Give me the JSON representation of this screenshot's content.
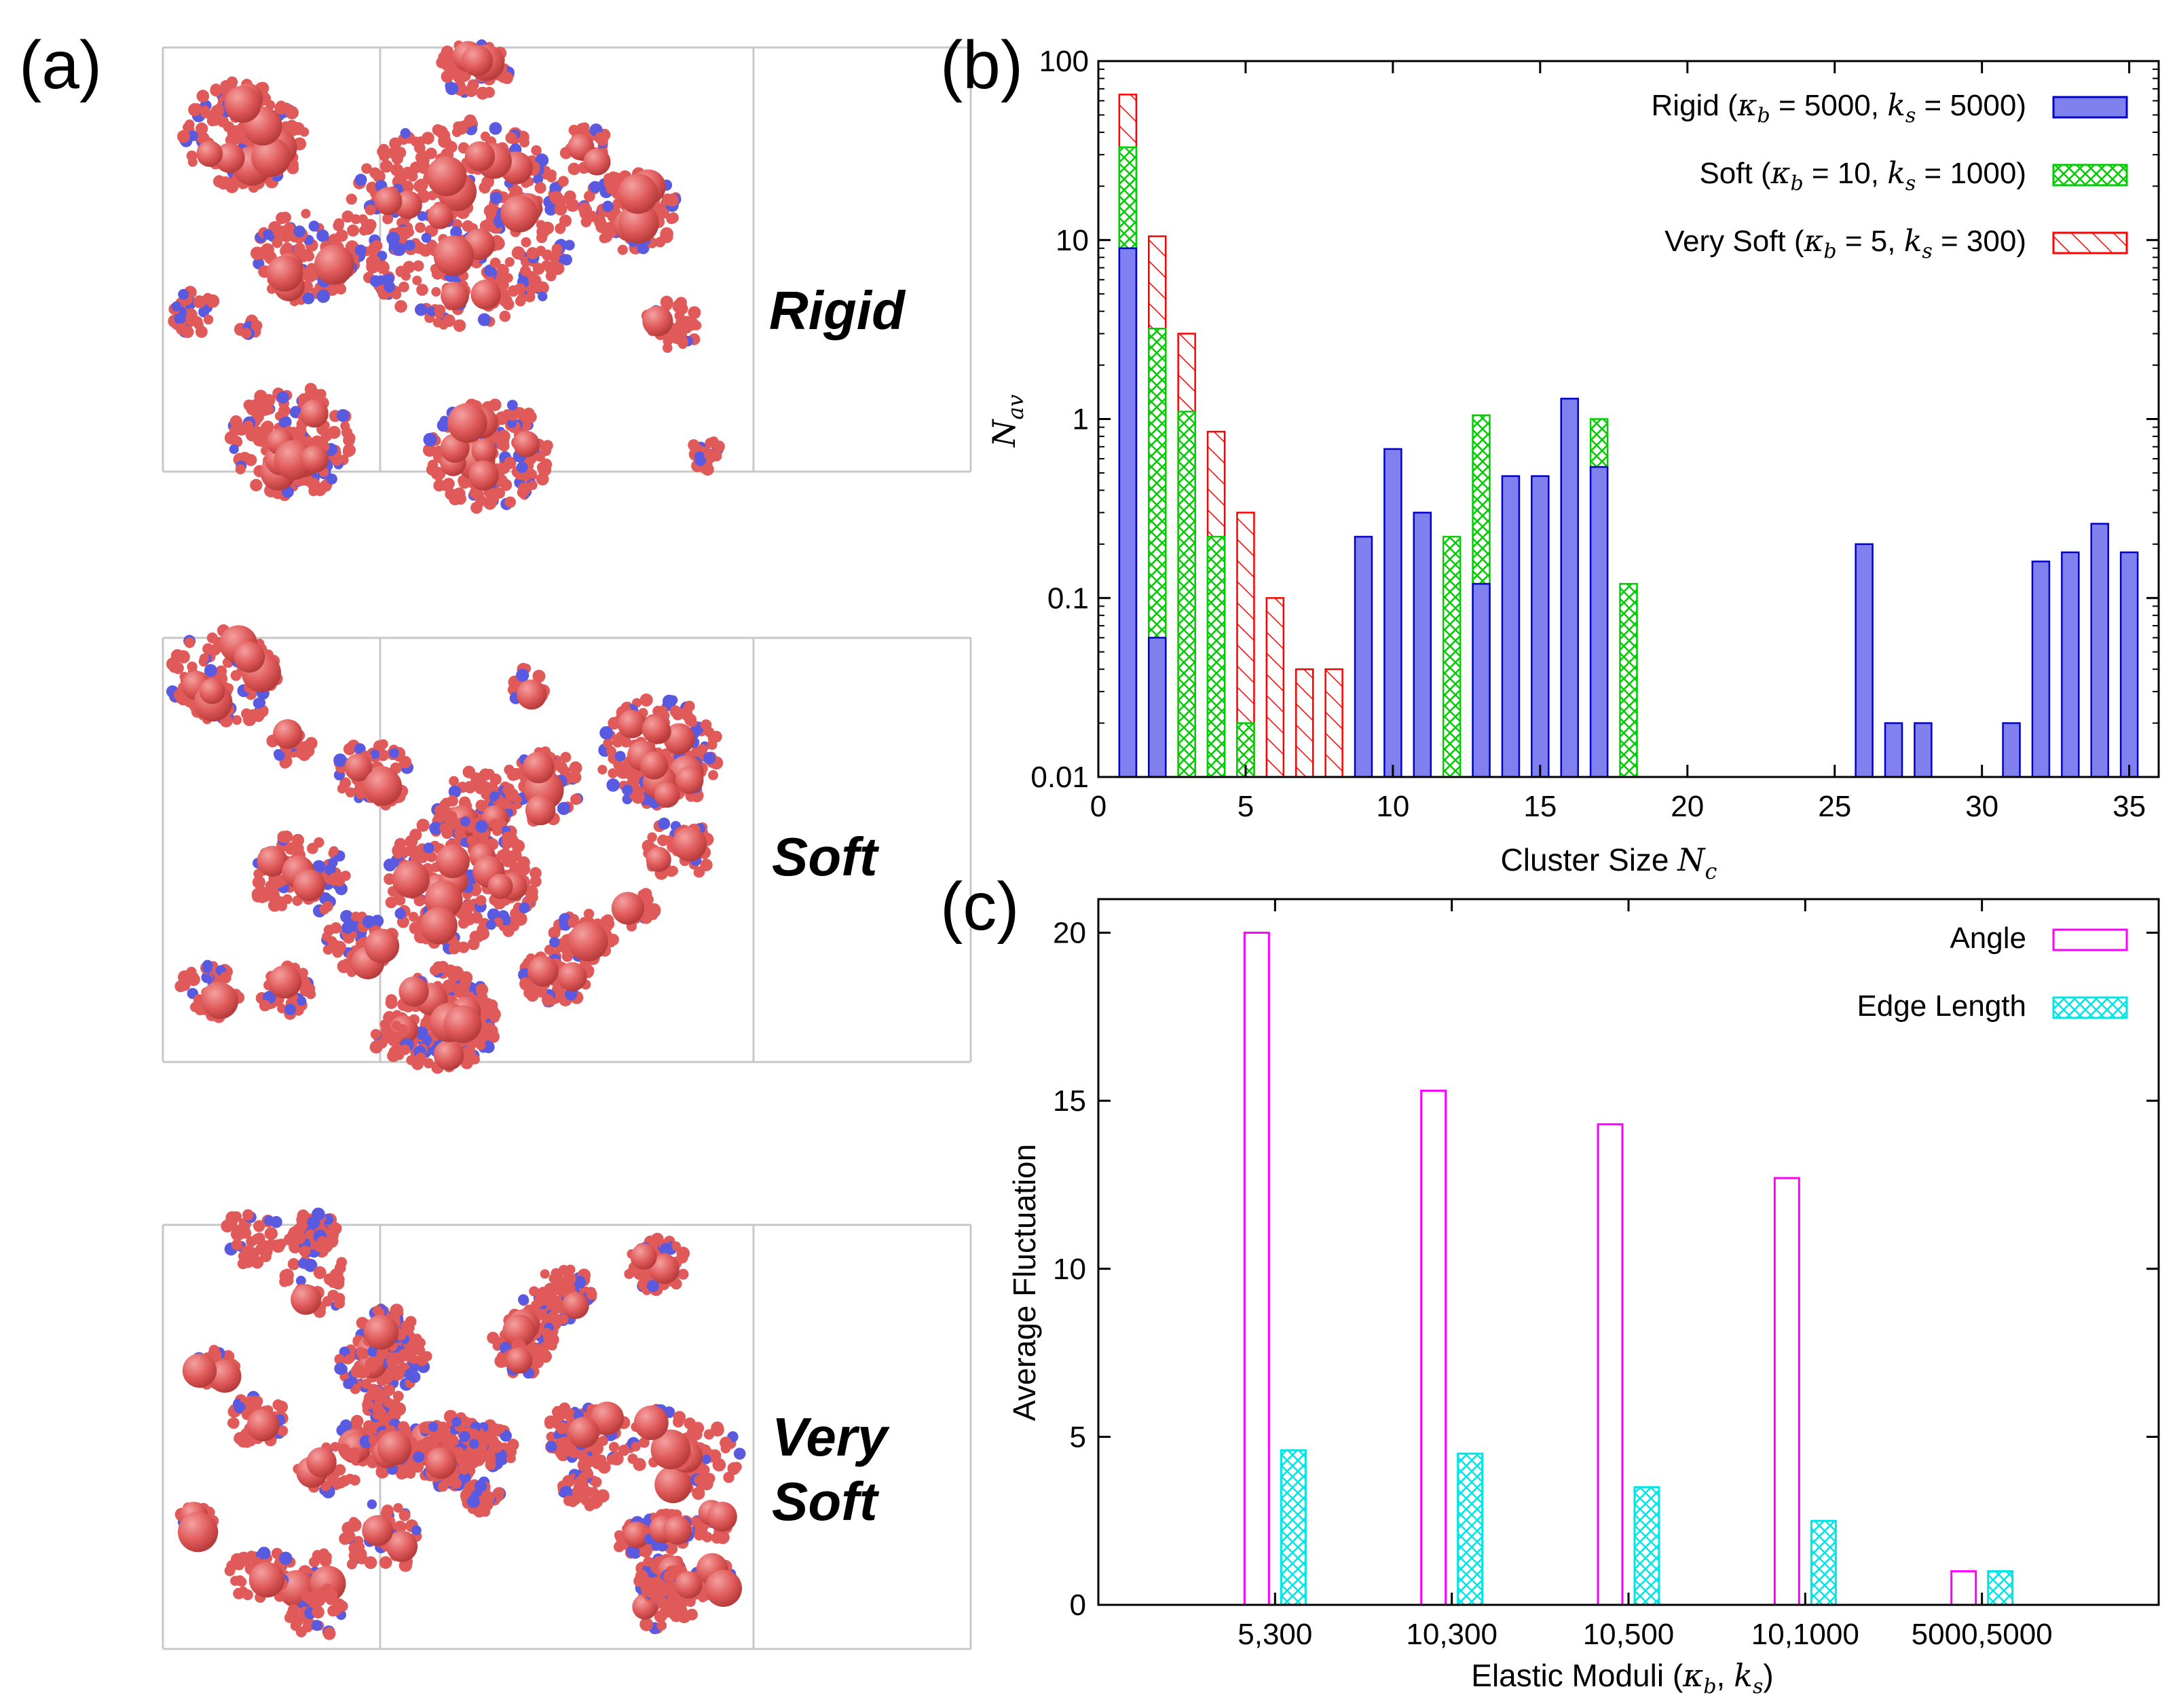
{
  "panels": {
    "a": {
      "label": "(a)",
      "states": [
        {
          "label": "Rigid"
        },
        {
          "label": "Soft"
        },
        {
          "label_line1": "Very",
          "label_line2": "Soft"
        }
      ]
    },
    "b": {
      "label": "(b)"
    },
    "c": {
      "label": "(c)"
    }
  },
  "colors": {
    "rigid": "#0000cc",
    "rigid_fill": "#8080ee",
    "soft": "#00cc00",
    "very_soft": "#ff0000",
    "angle": "#ff00ff",
    "edge": "#00e5e5",
    "particle": "#e05a5a",
    "particle_alt": "#5a5ae0",
    "box": "#c8c8c8"
  },
  "chart_data": [
    {
      "id": "b",
      "type": "bar",
      "scale": "log",
      "xlabel_prefix": "Cluster Size ",
      "xlabel_var": "N",
      "xlabel_sub": "c",
      "ylabel_var": "N",
      "ylabel_sub": "av",
      "xlim": [
        0,
        36
      ],
      "ylim": [
        0.01,
        100
      ],
      "xticks": [
        0,
        5,
        10,
        15,
        20,
        25,
        30,
        35
      ],
      "yticks": [
        0.01,
        0.1,
        1,
        10,
        100
      ],
      "ytick_labels": [
        "0.01",
        "0.1",
        "1",
        "10",
        "100"
      ],
      "stacking": "cumulative (Rigid drawn on top of Soft on top of Very Soft)",
      "series": [
        {
          "name": "Rigid",
          "legend_prefix": "Rigid (",
          "legend_k1": "κ",
          "legend_k1_sub": "b",
          "legend_k1_val": " = 5000, ",
          "legend_k2": "k",
          "legend_k2_sub": "s",
          "legend_k2_val": " = 5000)",
          "x": [
            1,
            2,
            9,
            10,
            11,
            13,
            14,
            15,
            16,
            17,
            26,
            27,
            28,
            31,
            32,
            33,
            34,
            35
          ],
          "values": [
            9,
            0.06,
            0.22,
            0.68,
            0.3,
            0.12,
            0.48,
            0.48,
            1.3,
            0.54,
            0.2,
            0.02,
            0.02,
            0.02,
            0.16,
            0.18,
            0.26,
            0.18
          ]
        },
        {
          "name": "Soft",
          "legend_prefix": "Soft (",
          "legend_k1": "κ",
          "legend_k1_sub": "b",
          "legend_k1_val": " = 10, ",
          "legend_k2": "k",
          "legend_k2_sub": "s",
          "legend_k2_val": " = 1000)",
          "x": [
            1,
            2,
            3,
            4,
            5,
            12,
            13,
            17,
            18
          ],
          "values": [
            33,
            3.2,
            1.1,
            0.22,
            0.02,
            0.22,
            1.05,
            1.0,
            0.12
          ]
        },
        {
          "name": "Very Soft",
          "legend_prefix": "Very Soft (",
          "legend_k1": "κ",
          "legend_k1_sub": "b",
          "legend_k1_val": " = 5, ",
          "legend_k2": "k",
          "legend_k2_sub": "s",
          "legend_k2_val": " = 300)",
          "x": [
            1,
            2,
            3,
            4,
            5,
            6,
            7,
            8
          ],
          "values": [
            65,
            10.5,
            3.0,
            0.85,
            0.3,
            0.1,
            0.04,
            0.04
          ]
        }
      ]
    },
    {
      "id": "c",
      "type": "bar",
      "xlabel_prefix": "Elastic Moduli (",
      "xlabel_k1": "κ",
      "xlabel_k1_sub": "b",
      "xlabel_mid": ", ",
      "xlabel_k2": "k",
      "xlabel_k2_sub": "s",
      "xlabel_suffix": ")",
      "ylabel": "Average Fluctuation",
      "ylim": [
        0,
        21
      ],
      "yticks": [
        0,
        5,
        10,
        15,
        20
      ],
      "categories": [
        "5,300",
        "10,300",
        "10,500",
        "10,1000",
        "5000,5000"
      ],
      "series": [
        {
          "name": "Angle",
          "values": [
            20.0,
            15.3,
            14.3,
            12.7,
            1.0
          ]
        },
        {
          "name": "Edge Length",
          "values": [
            4.6,
            4.5,
            3.5,
            2.5,
            1.0
          ]
        }
      ]
    }
  ]
}
